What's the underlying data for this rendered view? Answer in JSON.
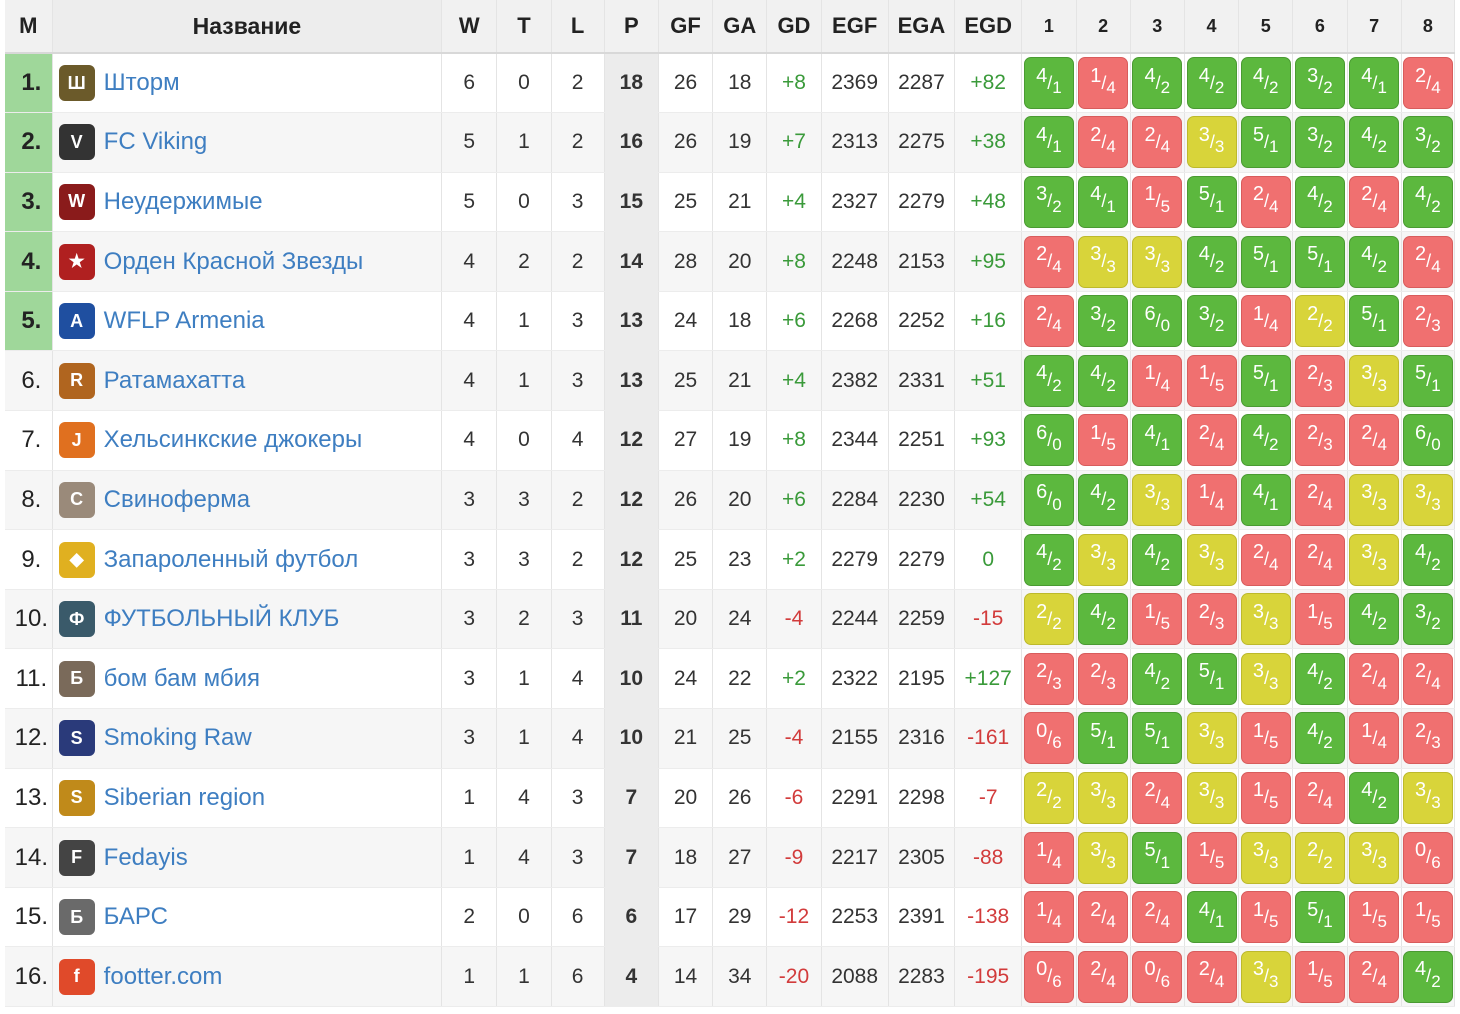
{
  "headers": {
    "pos": "М",
    "name": "Название",
    "w": "W",
    "t": "T",
    "l": "L",
    "p": "P",
    "gf": "GF",
    "ga": "GA",
    "gd": "GD",
    "egf": "EGF",
    "ega": "EGA",
    "egd": "EGD",
    "rounds": [
      "1",
      "2",
      "3",
      "4",
      "5",
      "6",
      "7",
      "8"
    ]
  },
  "colors": {
    "win": "#5cb83e",
    "loss": "#f07070",
    "draw": "#d8d43a",
    "top_zone": "#9fd79a",
    "link": "#3e7ec1"
  },
  "rows": [
    {
      "pos": "1.",
      "name": "Шторм",
      "logo": "storm-logo",
      "w": "6",
      "t": "0",
      "l": "2",
      "p": "18",
      "gf": "26",
      "ga": "18",
      "gd": "+8",
      "egf": "2369",
      "ega": "2287",
      "egd": "+82",
      "results": [
        [
          "4",
          "1"
        ],
        [
          "1",
          "4"
        ],
        [
          "4",
          "2"
        ],
        [
          "4",
          "2"
        ],
        [
          "4",
          "2"
        ],
        [
          "3",
          "2"
        ],
        [
          "4",
          "1"
        ],
        [
          "2",
          "4"
        ]
      ]
    },
    {
      "pos": "2.",
      "name": "FC Viking",
      "logo": "viking-logo",
      "w": "5",
      "t": "1",
      "l": "2",
      "p": "16",
      "gf": "26",
      "ga": "19",
      "gd": "+7",
      "egf": "2313",
      "ega": "2275",
      "egd": "+38",
      "results": [
        [
          "4",
          "1"
        ],
        [
          "2",
          "4"
        ],
        [
          "2",
          "4"
        ],
        [
          "3",
          "3"
        ],
        [
          "5",
          "1"
        ],
        [
          "3",
          "2"
        ],
        [
          "4",
          "2"
        ],
        [
          "3",
          "2"
        ]
      ]
    },
    {
      "pos": "3.",
      "name": "Неудержимые",
      "logo": "wings-logo",
      "w": "5",
      "t": "0",
      "l": "3",
      "p": "15",
      "gf": "25",
      "ga": "21",
      "gd": "+4",
      "egf": "2327",
      "ega": "2279",
      "egd": "+48",
      "results": [
        [
          "3",
          "2"
        ],
        [
          "4",
          "1"
        ],
        [
          "1",
          "5"
        ],
        [
          "5",
          "1"
        ],
        [
          "2",
          "4"
        ],
        [
          "4",
          "2"
        ],
        [
          "2",
          "4"
        ],
        [
          "4",
          "2"
        ]
      ]
    },
    {
      "pos": "4.",
      "name": "Орден Красной Звезды",
      "logo": "red-star-logo",
      "w": "4",
      "t": "2",
      "l": "2",
      "p": "14",
      "gf": "28",
      "ga": "20",
      "gd": "+8",
      "egf": "2248",
      "ega": "2153",
      "egd": "+95",
      "results": [
        [
          "2",
          "4"
        ],
        [
          "3",
          "3"
        ],
        [
          "3",
          "3"
        ],
        [
          "4",
          "2"
        ],
        [
          "5",
          "1"
        ],
        [
          "5",
          "1"
        ],
        [
          "4",
          "2"
        ],
        [
          "2",
          "4"
        ]
      ]
    },
    {
      "pos": "5.",
      "name": "WFLP Armenia",
      "logo": "wflp-logo",
      "w": "4",
      "t": "1",
      "l": "3",
      "p": "13",
      "gf": "24",
      "ga": "18",
      "gd": "+6",
      "egf": "2268",
      "ega": "2252",
      "egd": "+16",
      "results": [
        [
          "2",
          "4"
        ],
        [
          "3",
          "2"
        ],
        [
          "6",
          "0"
        ],
        [
          "3",
          "2"
        ],
        [
          "1",
          "4"
        ],
        [
          "2",
          "2"
        ],
        [
          "5",
          "1"
        ],
        [
          "2",
          "3"
        ]
      ]
    },
    {
      "pos": "6.",
      "name": "Ратамахатта",
      "logo": "ratamahatta-logo",
      "w": "4",
      "t": "1",
      "l": "3",
      "p": "13",
      "gf": "25",
      "ga": "21",
      "gd": "+4",
      "egf": "2382",
      "ega": "2331",
      "egd": "+51",
      "results": [
        [
          "4",
          "2"
        ],
        [
          "4",
          "2"
        ],
        [
          "1",
          "4"
        ],
        [
          "1",
          "5"
        ],
        [
          "5",
          "1"
        ],
        [
          "2",
          "3"
        ],
        [
          "3",
          "3"
        ],
        [
          "5",
          "1"
        ]
      ]
    },
    {
      "pos": "7.",
      "name": "Хельсинкские джокеры",
      "logo": "jokers-logo",
      "w": "4",
      "t": "0",
      "l": "4",
      "p": "12",
      "gf": "27",
      "ga": "19",
      "gd": "+8",
      "egf": "2344",
      "ega": "2251",
      "egd": "+93",
      "results": [
        [
          "6",
          "0"
        ],
        [
          "1",
          "5"
        ],
        [
          "4",
          "1"
        ],
        [
          "2",
          "4"
        ],
        [
          "4",
          "2"
        ],
        [
          "2",
          "3"
        ],
        [
          "2",
          "4"
        ],
        [
          "6",
          "0"
        ]
      ]
    },
    {
      "pos": "8.",
      "name": "Свиноферма",
      "logo": "pig-farm-logo",
      "w": "3",
      "t": "3",
      "l": "2",
      "p": "12",
      "gf": "26",
      "ga": "20",
      "gd": "+6",
      "egf": "2284",
      "ega": "2230",
      "egd": "+54",
      "results": [
        [
          "6",
          "0"
        ],
        [
          "4",
          "2"
        ],
        [
          "3",
          "3"
        ],
        [
          "1",
          "4"
        ],
        [
          "4",
          "1"
        ],
        [
          "2",
          "4"
        ],
        [
          "3",
          "3"
        ],
        [
          "3",
          "3"
        ]
      ]
    },
    {
      "pos": "9.",
      "name": "Запароленный футбол",
      "logo": "password-logo",
      "w": "3",
      "t": "3",
      "l": "2",
      "p": "12",
      "gf": "25",
      "ga": "23",
      "gd": "+2",
      "egf": "2279",
      "ega": "2279",
      "egd": "0",
      "results": [
        [
          "4",
          "2"
        ],
        [
          "3",
          "3"
        ],
        [
          "4",
          "2"
        ],
        [
          "3",
          "3"
        ],
        [
          "2",
          "4"
        ],
        [
          "2",
          "4"
        ],
        [
          "3",
          "3"
        ],
        [
          "4",
          "2"
        ]
      ]
    },
    {
      "pos": "10.",
      "name": "ФУТБОЛЬНЫЙ КЛУБ",
      "logo": "football-club-logo",
      "w": "3",
      "t": "2",
      "l": "3",
      "p": "11",
      "gf": "20",
      "ga": "24",
      "gd": "-4",
      "egf": "2244",
      "ega": "2259",
      "egd": "-15",
      "results": [
        [
          "2",
          "2"
        ],
        [
          "4",
          "2"
        ],
        [
          "1",
          "5"
        ],
        [
          "2",
          "3"
        ],
        [
          "3",
          "3"
        ],
        [
          "1",
          "5"
        ],
        [
          "4",
          "2"
        ],
        [
          "3",
          "2"
        ]
      ]
    },
    {
      "pos": "11.",
      "name": "бом бам мбия",
      "logo": "bom-bam-logo",
      "w": "3",
      "t": "1",
      "l": "4",
      "p": "10",
      "gf": "24",
      "ga": "22",
      "gd": "+2",
      "egf": "2322",
      "ega": "2195",
      "egd": "+127",
      "results": [
        [
          "2",
          "3"
        ],
        [
          "2",
          "3"
        ],
        [
          "4",
          "2"
        ],
        [
          "5",
          "1"
        ],
        [
          "3",
          "3"
        ],
        [
          "4",
          "2"
        ],
        [
          "2",
          "4"
        ],
        [
          "2",
          "4"
        ]
      ]
    },
    {
      "pos": "12.",
      "name": "Smoking Raw",
      "logo": "smoking-raw-logo",
      "w": "3",
      "t": "1",
      "l": "4",
      "p": "10",
      "gf": "21",
      "ga": "25",
      "gd": "-4",
      "egf": "2155",
      "ega": "2316",
      "egd": "-161",
      "results": [
        [
          "0",
          "6"
        ],
        [
          "5",
          "1"
        ],
        [
          "5",
          "1"
        ],
        [
          "3",
          "3"
        ],
        [
          "1",
          "5"
        ],
        [
          "4",
          "2"
        ],
        [
          "1",
          "4"
        ],
        [
          "2",
          "3"
        ]
      ]
    },
    {
      "pos": "13.",
      "name": "Siberian region",
      "logo": "siberian-logo",
      "w": "1",
      "t": "4",
      "l": "3",
      "p": "7",
      "gf": "20",
      "ga": "26",
      "gd": "-6",
      "egf": "2291",
      "ega": "2298",
      "egd": "-7",
      "results": [
        [
          "2",
          "2"
        ],
        [
          "3",
          "3"
        ],
        [
          "2",
          "4"
        ],
        [
          "3",
          "3"
        ],
        [
          "1",
          "5"
        ],
        [
          "2",
          "4"
        ],
        [
          "4",
          "2"
        ],
        [
          "3",
          "3"
        ]
      ]
    },
    {
      "pos": "14.",
      "name": "Fedayis",
      "logo": "fedayis-logo",
      "w": "1",
      "t": "4",
      "l": "3",
      "p": "7",
      "gf": "18",
      "ga": "27",
      "gd": "-9",
      "egf": "2217",
      "ega": "2305",
      "egd": "-88",
      "results": [
        [
          "1",
          "4"
        ],
        [
          "3",
          "3"
        ],
        [
          "5",
          "1"
        ],
        [
          "1",
          "5"
        ],
        [
          "3",
          "3"
        ],
        [
          "2",
          "2"
        ],
        [
          "3",
          "3"
        ],
        [
          "0",
          "6"
        ]
      ]
    },
    {
      "pos": "15.",
      "name": "БАРС",
      "logo": "bars-logo",
      "w": "2",
      "t": "0",
      "l": "6",
      "p": "6",
      "gf": "17",
      "ga": "29",
      "gd": "-12",
      "egf": "2253",
      "ega": "2391",
      "egd": "-138",
      "results": [
        [
          "1",
          "4"
        ],
        [
          "2",
          "4"
        ],
        [
          "2",
          "4"
        ],
        [
          "4",
          "1"
        ],
        [
          "1",
          "5"
        ],
        [
          "5",
          "1"
        ],
        [
          "1",
          "5"
        ],
        [
          "1",
          "5"
        ]
      ]
    },
    {
      "pos": "16.",
      "name": "footter.com",
      "logo": "footter-logo",
      "w": "1",
      "t": "1",
      "l": "6",
      "p": "4",
      "gf": "14",
      "ga": "34",
      "gd": "-20",
      "egf": "2088",
      "ega": "2283",
      "egd": "-195",
      "results": [
        [
          "0",
          "6"
        ],
        [
          "2",
          "4"
        ],
        [
          "0",
          "6"
        ],
        [
          "2",
          "4"
        ],
        [
          "3",
          "3"
        ],
        [
          "1",
          "5"
        ],
        [
          "2",
          "4"
        ],
        [
          "4",
          "2"
        ]
      ]
    }
  ]
}
